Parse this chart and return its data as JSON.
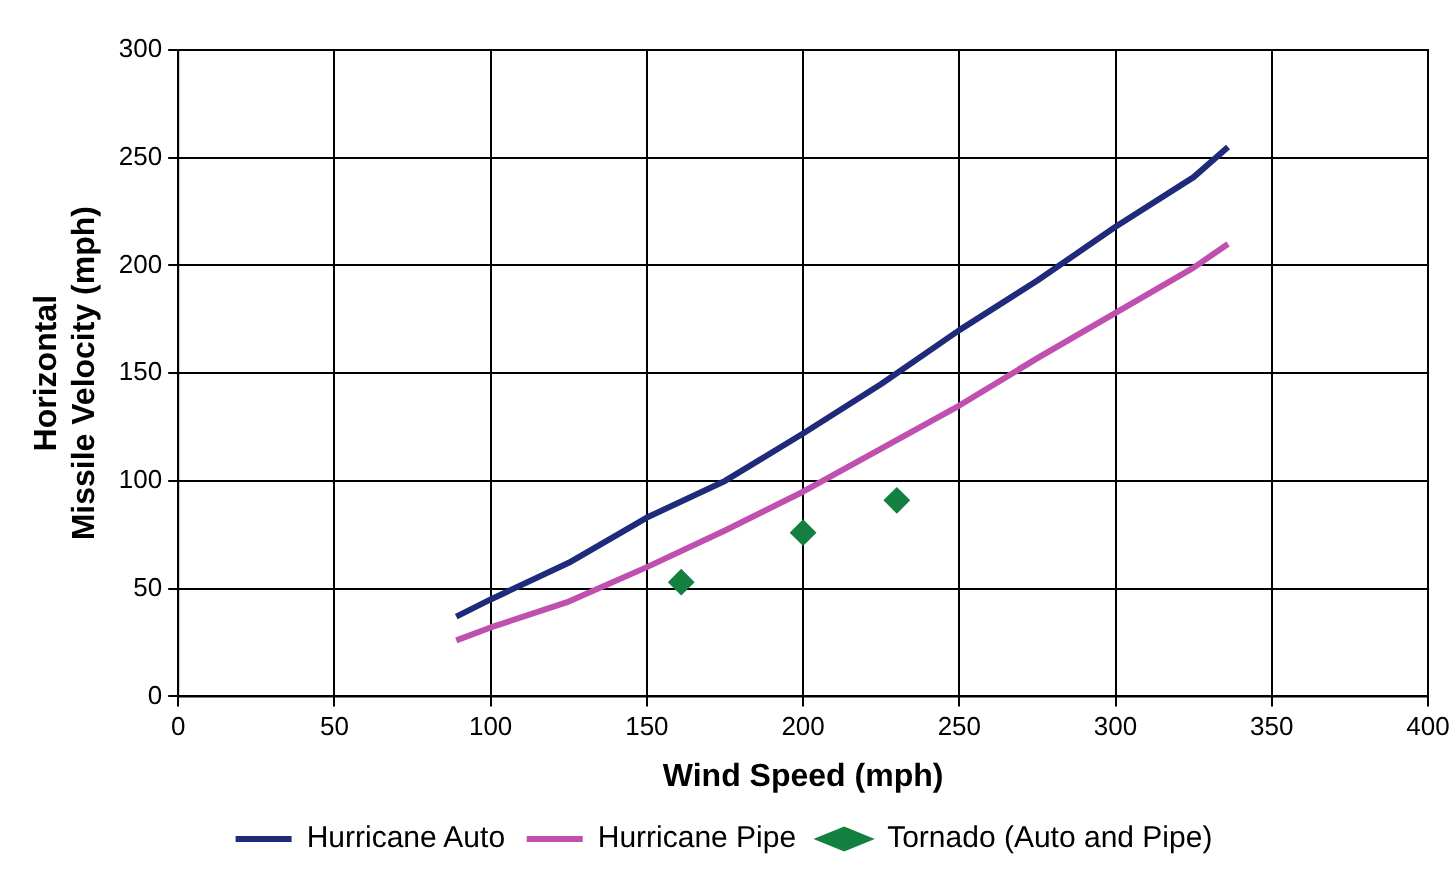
{
  "chart_data": {
    "type": "line",
    "xlabel": "Wind Speed (mph)",
    "ylabel": "Horizontal\nMissile Velocity (mph)",
    "xlim": [
      0,
      400
    ],
    "xticks": [
      0,
      50,
      100,
      150,
      200,
      250,
      300,
      350,
      400
    ],
    "ylim": [
      0,
      300
    ],
    "yticks": [
      0,
      50,
      100,
      150,
      200,
      250,
      300
    ],
    "grid": true,
    "legend": "bottom",
    "series": [
      {
        "name": "Hurricane Auto",
        "type": "line",
        "color": "#1f2a7a",
        "marker": "none",
        "x": [
          89,
          100,
          125,
          150,
          175,
          200,
          225,
          250,
          275,
          300,
          325,
          336
        ],
        "values": [
          37,
          45,
          62,
          83,
          100,
          122,
          145,
          170,
          193,
          218,
          241,
          255
        ]
      },
      {
        "name": "Hurricane Pipe",
        "type": "line",
        "color": "#c050b0",
        "marker": "none",
        "x": [
          89,
          100,
          125,
          150,
          175,
          200,
          225,
          250,
          275,
          300,
          325,
          336
        ],
        "values": [
          26,
          32,
          44,
          60,
          77,
          95,
          115,
          135,
          157,
          178,
          199,
          210
        ]
      },
      {
        "name": "Tornado (Auto and Pipe)",
        "type": "scatter",
        "color": "#138040",
        "marker": "diamond",
        "x": [
          161,
          200,
          230
        ],
        "values": [
          53,
          76,
          91
        ]
      }
    ]
  }
}
